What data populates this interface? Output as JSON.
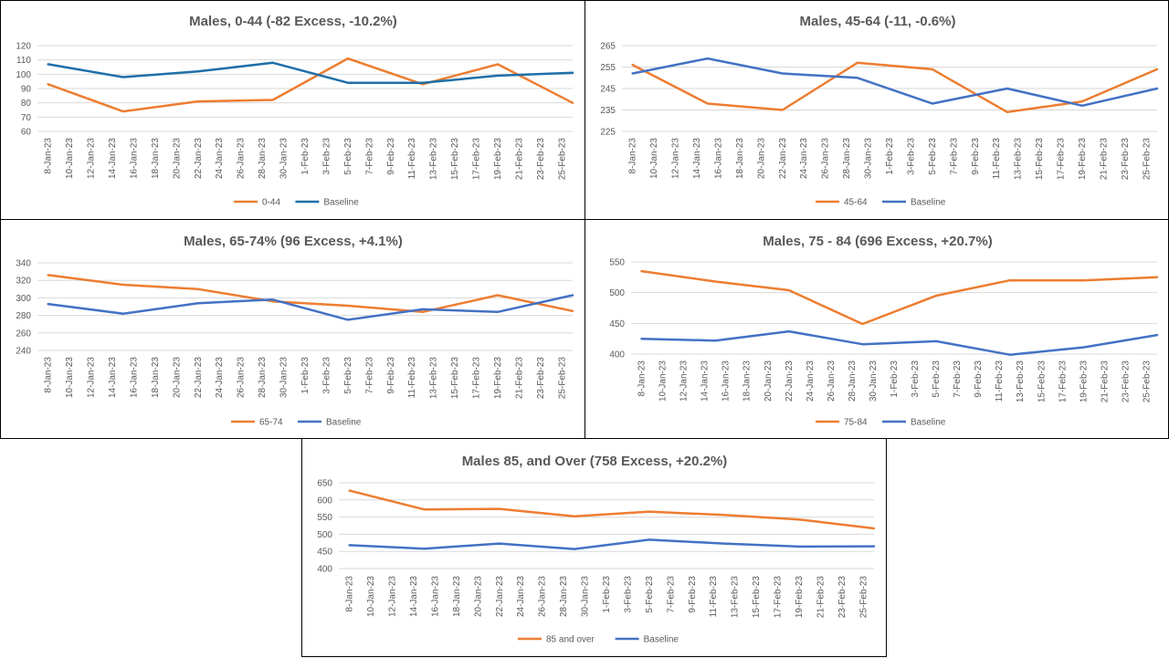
{
  "colors": {
    "orange": "#ED7D31",
    "blue": "#4472C4",
    "teal": "#1F6FA8",
    "grid": "#D9D9D9",
    "text": "#595959"
  },
  "x_labels": [
    "8-Jan-23",
    "10-Jan-23",
    "12-Jan-23",
    "14-Jan-23",
    "16-Jan-23",
    "18-Jan-23",
    "20-Jan-23",
    "22-Jan-23",
    "24-Jan-23",
    "26-Jan-23",
    "28-Jan-23",
    "30-Jan-23",
    "1-Feb-23",
    "3-Feb-23",
    "5-Feb-23",
    "7-Feb-23",
    "9-Feb-23",
    "11-Feb-23",
    "13-Feb-23",
    "15-Feb-23",
    "17-Feb-23",
    "19-Feb-23",
    "21-Feb-23",
    "23-Feb-23",
    "25-Feb-23"
  ],
  "chart_data": [
    {
      "type": "line",
      "title": "Males, 0-44 (-82 Excess, -10.2%)",
      "ylim": [
        60,
        120
      ],
      "yticks": [
        60,
        70,
        80,
        90,
        100,
        110,
        120
      ],
      "x_dates": [
        "8-Jan-23",
        "15-Jan-23",
        "22-Jan-23",
        "29-Jan-23",
        "5-Feb-23",
        "12-Feb-23",
        "19-Feb-23",
        "26-Feb-23"
      ],
      "series": [
        {
          "name": "0-44",
          "color": "#ED7D31",
          "values": [
            93,
            74,
            81,
            82,
            111,
            93,
            107,
            80
          ]
        },
        {
          "name": "Baseline",
          "color": "#1F6FA8",
          "values": [
            107,
            98,
            102,
            108,
            94,
            94,
            99,
            101
          ]
        }
      ]
    },
    {
      "type": "line",
      "title": "Males, 45-64 (-11, -0.6%)",
      "ylim": [
        225,
        265
      ],
      "yticks": [
        225,
        235,
        245,
        255,
        265
      ],
      "x_dates": [
        "8-Jan-23",
        "15-Jan-23",
        "22-Jan-23",
        "29-Jan-23",
        "5-Feb-23",
        "12-Feb-23",
        "19-Feb-23",
        "26-Feb-23"
      ],
      "series": [
        {
          "name": "45-64",
          "color": "#ED7D31",
          "values": [
            256,
            238,
            235,
            257,
            254,
            234,
            239,
            254
          ]
        },
        {
          "name": "Baseline",
          "color": "#4472C4",
          "values": [
            252,
            259,
            252,
            250,
            238,
            245,
            237,
            245
          ]
        }
      ]
    },
    {
      "type": "line",
      "title": "Males, 65-74% (96 Excess, +4.1%)",
      "ylim": [
        240,
        340
      ],
      "yticks": [
        240,
        260,
        280,
        300,
        320,
        340
      ],
      "x_dates": [
        "8-Jan-23",
        "15-Jan-23",
        "22-Jan-23",
        "29-Jan-23",
        "5-Feb-23",
        "12-Feb-23",
        "19-Feb-23",
        "26-Feb-23"
      ],
      "series": [
        {
          "name": "65-74",
          "color": "#ED7D31",
          "values": [
            326,
            315,
            310,
            296,
            291,
            284,
            303,
            285
          ]
        },
        {
          "name": "Baseline",
          "color": "#4472C4",
          "values": [
            293,
            282,
            294,
            298,
            275,
            287,
            284,
            303
          ]
        }
      ]
    },
    {
      "type": "line",
      "title": "Males, 75 - 84 (696 Excess, +20.7%)",
      "ylim": [
        400,
        550
      ],
      "yticks": [
        400,
        450,
        500,
        550
      ],
      "x_dates": [
        "8-Jan-23",
        "15-Jan-23",
        "22-Jan-23",
        "29-Jan-23",
        "5-Feb-23",
        "12-Feb-23",
        "19-Feb-23",
        "26-Feb-23"
      ],
      "series": [
        {
          "name": "75-84",
          "color": "#ED7D31",
          "values": [
            535,
            518,
            504,
            449,
            495,
            520,
            520,
            525
          ]
        },
        {
          "name": "Baseline",
          "color": "#4472C4",
          "values": [
            425,
            422,
            437,
            416,
            421,
            399,
            411,
            431
          ]
        }
      ]
    },
    {
      "type": "line",
      "title": "Males 85, and Over (758 Excess, +20.2%)",
      "ylim": [
        400,
        650
      ],
      "yticks": [
        400,
        450,
        500,
        550,
        600,
        650
      ],
      "x_dates": [
        "8-Jan-23",
        "15-Jan-23",
        "22-Jan-23",
        "29-Jan-23",
        "5-Feb-23",
        "12-Feb-23",
        "19-Feb-23",
        "26-Feb-23"
      ],
      "series": [
        {
          "name": "85 and over",
          "color": "#ED7D31",
          "values": [
            627,
            572,
            574,
            552,
            566,
            556,
            543,
            517
          ]
        },
        {
          "name": "Baseline",
          "color": "#4472C4",
          "values": [
            468,
            458,
            473,
            457,
            484,
            473,
            464,
            465
          ]
        }
      ]
    }
  ]
}
